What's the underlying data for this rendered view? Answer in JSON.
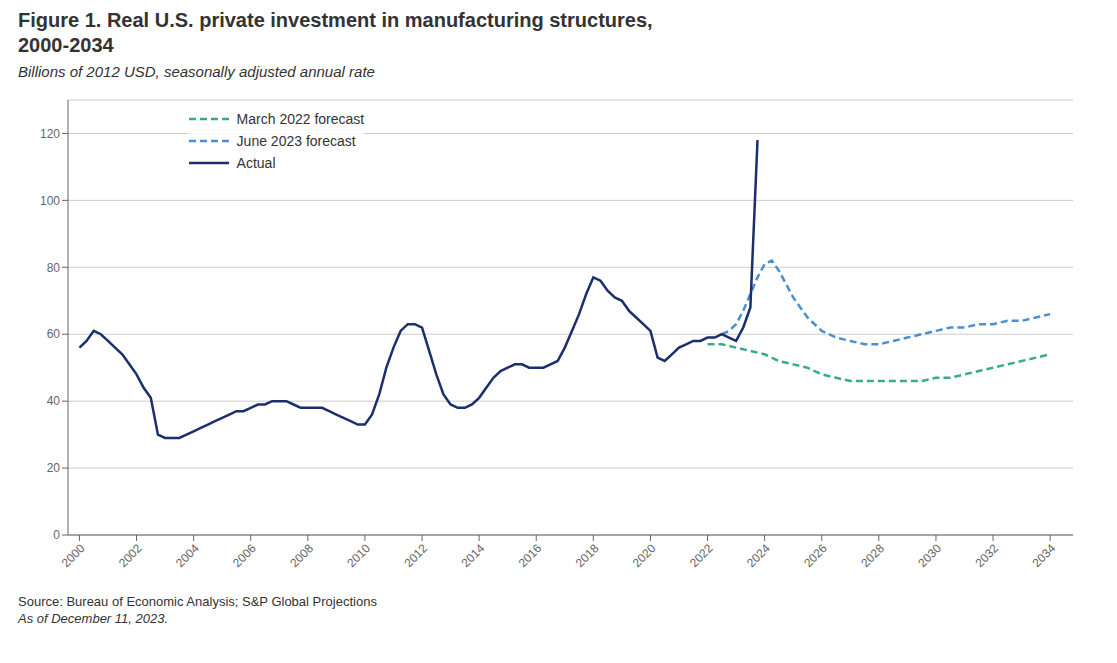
{
  "chart_data": {
    "type": "line",
    "title": "Figure 1. Real U.S. private investment in manufacturing structures,\n2000-2034",
    "subtitle": "Billions of 2012 USD, seasonally adjusted annual rate",
    "annotations": [
      "Source: Bureau of Economic Analysis; S&P Global Projections",
      "As of December 11, 2023."
    ],
    "xlim": [
      1999.6,
      2034.8
    ],
    "xticks": [
      2000,
      2002,
      2004,
      2006,
      2008,
      2010,
      2012,
      2014,
      2016,
      2018,
      2020,
      2022,
      2024,
      2026,
      2028,
      2030,
      2032,
      2034
    ],
    "ylim": [
      0,
      130
    ],
    "yticks": [
      0,
      20,
      40,
      60,
      80,
      100,
      120
    ],
    "grid": "y",
    "legend": "upper left",
    "series": [
      {
        "name": "March 2022 forecast",
        "color": "#3aaa8e",
        "line_style": "dashed",
        "x": [
          2022.0,
          2022.5,
          2023.0,
          2023.5,
          2024.0,
          2024.5,
          2025.0,
          2025.5,
          2026.0,
          2026.5,
          2027.0,
          2027.5,
          2028.0,
          2028.5,
          2029.0,
          2029.5,
          2030.0,
          2030.5,
          2031.0,
          2031.5,
          2032.0,
          2032.5,
          2033.0,
          2033.5,
          2034.0
        ],
        "values": [
          57,
          57,
          56,
          55,
          54,
          52,
          51,
          50,
          48,
          47,
          46,
          46,
          46,
          46,
          46,
          46,
          47,
          47,
          48,
          49,
          50,
          51,
          52,
          53,
          54
        ]
      },
      {
        "name": "June 2023 forecast",
        "color": "#4a90d0",
        "line_style": "dashed",
        "x": [
          2022.5,
          2022.75,
          2023.0,
          2023.25,
          2023.5,
          2023.75,
          2024.0,
          2024.25,
          2024.5,
          2025.0,
          2025.5,
          2026.0,
          2026.5,
          2027.0,
          2027.5,
          2028.0,
          2028.5,
          2029.0,
          2029.5,
          2030.0,
          2030.5,
          2031.0,
          2031.5,
          2032.0,
          2032.5,
          2033.0,
          2033.5,
          2034.0
        ],
        "values": [
          60,
          61,
          63,
          67,
          72,
          77,
          81,
          82,
          79,
          71,
          65,
          61,
          59,
          58,
          57,
          57,
          58,
          59,
          60,
          61,
          62,
          62,
          63,
          63,
          64,
          64,
          65,
          66
        ]
      },
      {
        "name": "Actual",
        "color": "#1a2f6b",
        "line_style": "solid",
        "x": [
          2000.0,
          2000.25,
          2000.5,
          2000.75,
          2001.0,
          2001.25,
          2001.5,
          2001.75,
          2002.0,
          2002.25,
          2002.5,
          2002.75,
          2003.0,
          2003.25,
          2003.5,
          2003.75,
          2004.0,
          2004.25,
          2004.5,
          2004.75,
          2005.0,
          2005.25,
          2005.5,
          2005.75,
          2006.0,
          2006.25,
          2006.5,
          2006.75,
          2007.0,
          2007.25,
          2007.5,
          2007.75,
          2008.0,
          2008.25,
          2008.5,
          2008.75,
          2009.0,
          2009.25,
          2009.5,
          2009.75,
          2010.0,
          2010.25,
          2010.5,
          2010.75,
          2011.0,
          2011.25,
          2011.5,
          2011.75,
          2012.0,
          2012.25,
          2012.5,
          2012.75,
          2013.0,
          2013.25,
          2013.5,
          2013.75,
          2014.0,
          2014.25,
          2014.5,
          2014.75,
          2015.0,
          2015.25,
          2015.5,
          2015.75,
          2016.0,
          2016.25,
          2016.5,
          2016.75,
          2017.0,
          2017.25,
          2017.5,
          2017.75,
          2018.0,
          2018.25,
          2018.5,
          2018.75,
          2019.0,
          2019.25,
          2019.5,
          2019.75,
          2020.0,
          2020.25,
          2020.5,
          2020.75,
          2021.0,
          2021.25,
          2021.5,
          2021.75,
          2022.0,
          2022.25,
          2022.5,
          2022.75,
          2023.0,
          2023.25,
          2023.5,
          2023.75
        ],
        "values": [
          56,
          58,
          61,
          60,
          58,
          56,
          54,
          51,
          48,
          44,
          41,
          30,
          29,
          29,
          29,
          30,
          31,
          32,
          33,
          34,
          35,
          36,
          37,
          37,
          38,
          39,
          39,
          40,
          40,
          40,
          39,
          38,
          38,
          38,
          38,
          37,
          36,
          35,
          34,
          33,
          33,
          36,
          42,
          50,
          56,
          61,
          63,
          63,
          62,
          55,
          48,
          42,
          39,
          38,
          38,
          39,
          41,
          44,
          47,
          49,
          50,
          51,
          51,
          50,
          50,
          50,
          51,
          52,
          56,
          61,
          66,
          72,
          77,
          76,
          73,
          71,
          70,
          67,
          65,
          63,
          61,
          53,
          52,
          54,
          56,
          57,
          58,
          58,
          59,
          59,
          60,
          59,
          58,
          62,
          68,
          118
        ]
      }
    ]
  }
}
